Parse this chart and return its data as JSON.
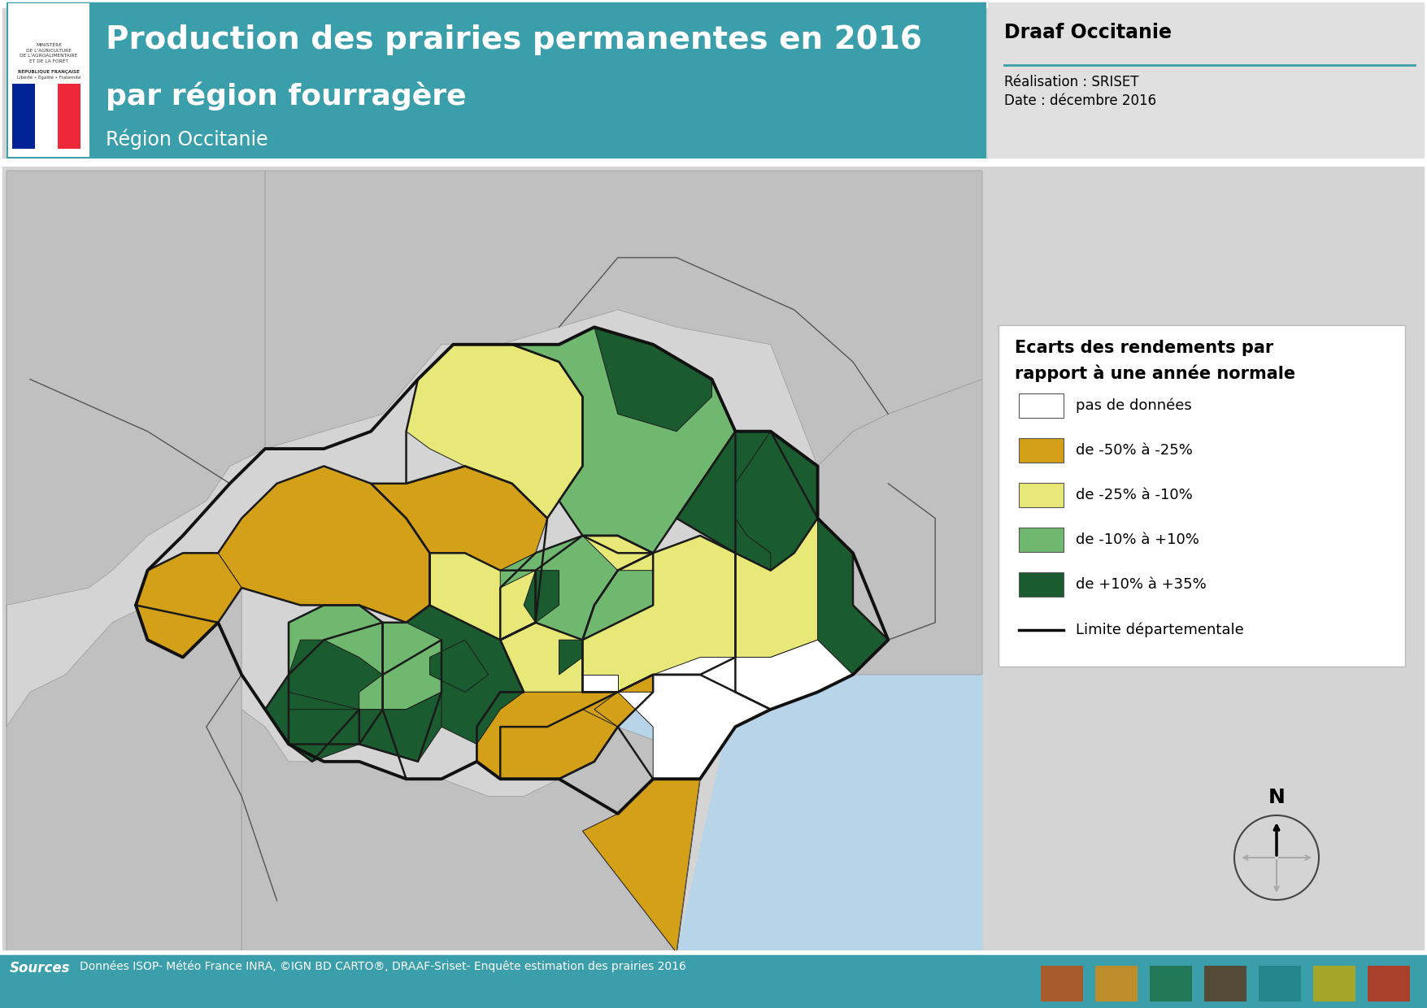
{
  "title_main": "Production des prairies permanentes en 2016",
  "title_sub": "par région fourragère",
  "title_region": "Région Occitanie",
  "header_bg": "#3a9eab",
  "sidebar_title": "Draaf Occitanie",
  "sidebar_text1": "Réalisation : SRISET",
  "sidebar_text2": "Date : décembre 2016",
  "bg_color": "#d4d4d4",
  "sea_color": "#b8d4e8",
  "legend_title": "Ecarts des rendements par\nrapport à une année normale",
  "legend_items": [
    {
      "label": "pas de données",
      "color": "#ffffff"
    },
    {
      "label": "de -50% à -25%",
      "color": "#d4a017"
    },
    {
      "label": "de -25% à -10%",
      "color": "#e8e878"
    },
    {
      "label": "de -10% à +10%",
      "color": "#70b870"
    },
    {
      "label": "de +10% à +35%",
      "color": "#1a5c30"
    }
  ],
  "footer_bg": "#3a9eab",
  "footer_text": "Données ISOP- Météo France INRA, ©IGN BD CARTO®, DRAAF-Sriset- Enquête estimation des prairies 2016",
  "sources_label": "Sources",
  "white": "#ffffff",
  "black": "#000000",
  "light_gray": "#e0e0e0",
  "line_limit": "Limite départementale",
  "teal": "#3a9eab",
  "surrounding_gray": "#c0c0c0",
  "border_color": "#1a1a1a"
}
